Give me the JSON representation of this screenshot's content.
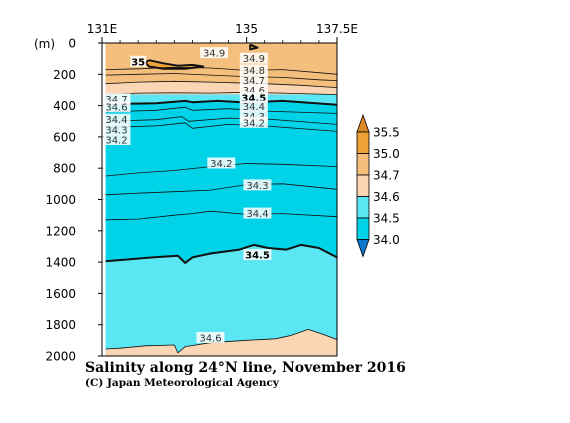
{
  "chart_data": {
    "type": "contour",
    "title": "Salinity along 24°N line, November 2016",
    "credit": "(C) Japan Meteorological Agency",
    "xlabel": "",
    "ylabel": "(m)",
    "xlim": [
      131,
      137.5
    ],
    "ylim": [
      2000,
      0
    ],
    "x_ticks": [
      {
        "value": 131,
        "label": "131E"
      },
      {
        "value": 135,
        "label": "135"
      },
      {
        "value": 137.5,
        "label": "137.5E"
      }
    ],
    "y_ticks": [
      {
        "value": 0,
        "label": "0"
      },
      {
        "value": 200,
        "label": "200"
      },
      {
        "value": 400,
        "label": "400"
      },
      {
        "value": 600,
        "label": "600"
      },
      {
        "value": 800,
        "label": "800"
      },
      {
        "value": 1000,
        "label": "1000"
      },
      {
        "value": 1200,
        "label": "1200"
      },
      {
        "value": 1400,
        "label": "1400"
      },
      {
        "value": 1600,
        "label": "1600"
      },
      {
        "value": 1800,
        "label": "1800"
      },
      {
        "value": 2000,
        "label": "2000"
      }
    ],
    "data_xrange": [
      131.1,
      137.5
    ],
    "colorbar": {
      "levels": [
        "35.5",
        "35.0",
        "34.7",
        "34.6",
        "34.5",
        "34.0"
      ],
      "bands": [
        {
          "range": "> 35.5",
          "color": "#dd8822"
        },
        {
          "range": "35.0 - 35.5",
          "color": "#eea33a"
        },
        {
          "range": "34.7 - 35.0",
          "color": "#f4bf7c"
        },
        {
          "range": "34.6 - 34.7",
          "color": "#fad6b5"
        },
        {
          "range": "34.5 - 34.6",
          "color": "#5ae6f2"
        },
        {
          "range": "34.0 - 34.5",
          "color": "#00d2e8"
        },
        {
          "range": "< 34.0",
          "color": "#0b78d0"
        }
      ]
    },
    "fill_regions": [
      {
        "range": "34.6 - 34.7",
        "color": "#fad6b5",
        "boundary": "top",
        "depth": [
          [
            131.1,
            0
          ],
          [
            137.5,
            0
          ],
          [
            137.5,
            330
          ],
          [
            131.1,
            330
          ]
        ]
      },
      {
        "range": "34.7 - 35.0",
        "color": "#f4bf7c",
        "boundary": "top",
        "depth": [
          [
            131.1,
            0
          ],
          [
            137.5,
            0
          ],
          [
            137.5,
            285
          ],
          [
            136.5,
            270
          ],
          [
            135.5,
            260
          ],
          [
            134,
            250
          ],
          [
            133,
            245
          ],
          [
            132,
            250
          ],
          [
            131.1,
            260
          ]
        ]
      },
      {
        "range": "34.5 - 34.6",
        "color": "#5ae6f2",
        "boundary": "bottom",
        "depth": [
          [
            131.1,
            1395
          ],
          [
            131.6,
            1385
          ],
          [
            132.4,
            1370
          ],
          [
            133.1,
            1360
          ],
          [
            133.3,
            1405
          ],
          [
            133.5,
            1370
          ],
          [
            134,
            1345
          ],
          [
            134.8,
            1320
          ],
          [
            135.2,
            1290
          ],
          [
            135.6,
            1310
          ],
          [
            136.1,
            1320
          ],
          [
            136.5,
            1290
          ],
          [
            137,
            1310
          ],
          [
            137.5,
            1370
          ],
          [
            137.5,
            2000
          ],
          [
            131.1,
            2000
          ]
        ]
      },
      {
        "range": "34.6 - 34.7",
        "color": "#fad6b5",
        "boundary": "bottom",
        "depth": [
          [
            131.1,
            1955
          ],
          [
            131.5,
            1950
          ],
          [
            132.2,
            1935
          ],
          [
            133,
            1930
          ],
          [
            133.1,
            1980
          ],
          [
            133.3,
            1940
          ],
          [
            134,
            1915
          ],
          [
            135,
            1900
          ],
          [
            135.8,
            1890
          ],
          [
            136.2,
            1870
          ],
          [
            136.7,
            1830
          ],
          [
            137.1,
            1860
          ],
          [
            137.5,
            1895
          ],
          [
            137.5,
            2000
          ],
          [
            131.1,
            2000
          ]
        ]
      },
      {
        "range": "34.5 - 34.6",
        "color": "#5ae6f2",
        "boundary": "top",
        "depth": [
          [
            131.1,
            390
          ],
          [
            132.5,
            385
          ],
          [
            133.5,
            372
          ],
          [
            134,
            378
          ],
          [
            135,
            380
          ],
          [
            136,
            370
          ],
          [
            137.5,
            395
          ],
          [
            137.5,
            330
          ],
          [
            131.1,
            330
          ]
        ]
      }
    ],
    "contours": [
      {
        "level": 34.9,
        "style": "thin",
        "depth": [
          [
            131.1,
            170
          ],
          [
            132,
            165
          ],
          [
            133,
            155
          ],
          [
            134,
            160
          ],
          [
            135,
            175
          ],
          [
            136,
            170
          ],
          [
            137,
            190
          ],
          [
            137.5,
            200
          ]
        ]
      },
      {
        "level": 34.8,
        "style": "thin",
        "depth": [
          [
            131.1,
            205
          ],
          [
            132,
            200
          ],
          [
            133,
            195
          ],
          [
            134,
            205
          ],
          [
            135,
            215
          ],
          [
            136,
            220
          ],
          [
            137,
            235
          ],
          [
            137.5,
            240
          ]
        ]
      },
      {
        "level": 34.7,
        "style": "thin",
        "depth": [
          [
            131.1,
            260
          ],
          [
            132,
            250
          ],
          [
            133,
            245
          ],
          [
            134,
            250
          ],
          [
            135.5,
            260
          ],
          [
            136.5,
            270
          ],
          [
            137.5,
            285
          ]
        ]
      },
      {
        "level": 34.6,
        "style": "thin",
        "depth": [
          [
            131.1,
            330
          ],
          [
            132,
            320
          ],
          [
            133,
            318
          ],
          [
            134,
            320
          ],
          [
            135,
            315
          ],
          [
            136,
            320
          ],
          [
            137.5,
            330
          ]
        ]
      },
      {
        "level": 34.5,
        "style": "thick",
        "depth": [
          [
            131.1,
            390
          ],
          [
            132.5,
            385
          ],
          [
            133.3,
            370
          ],
          [
            133.5,
            378
          ],
          [
            134.2,
            370
          ],
          [
            135,
            380
          ],
          [
            136,
            370
          ],
          [
            137.5,
            395
          ]
        ]
      },
      {
        "level": 34.4,
        "style": "thin",
        "depth": [
          [
            131.1,
            440
          ],
          [
            132.5,
            430
          ],
          [
            133.3,
            410
          ],
          [
            133.5,
            430
          ],
          [
            134.5,
            420
          ],
          [
            135.5,
            435
          ],
          [
            137.5,
            450
          ]
        ]
      },
      {
        "level": 34.3,
        "style": "thin",
        "depth": [
          [
            131.1,
            500
          ],
          [
            132.5,
            490
          ],
          [
            133.2,
            470
          ],
          [
            133.4,
            500
          ],
          [
            134.5,
            480
          ],
          [
            135.5,
            485
          ],
          [
            137.5,
            520
          ]
        ]
      },
      {
        "level": 34.2,
        "style": "thin",
        "depth": [
          [
            131.1,
            540
          ],
          [
            132.5,
            530
          ],
          [
            133.3,
            510
          ],
          [
            133.5,
            545
          ],
          [
            134.5,
            520
          ],
          [
            135.5,
            530
          ],
          [
            137.5,
            565
          ]
        ]
      },
      {
        "level": 34.2,
        "style": "thin",
        "depth": [
          [
            131.1,
            850
          ],
          [
            132,
            830
          ],
          [
            133,
            815
          ],
          [
            134,
            790
          ],
          [
            135,
            770
          ],
          [
            136,
            775
          ],
          [
            137.5,
            790
          ]
        ]
      },
      {
        "level": 34.3,
        "style": "thin",
        "depth": [
          [
            131.1,
            970
          ],
          [
            132,
            960
          ],
          [
            133,
            950
          ],
          [
            134,
            940
          ],
          [
            135,
            905
          ],
          [
            136,
            900
          ],
          [
            137.5,
            935
          ]
        ]
      },
      {
        "level": 34.4,
        "style": "thin",
        "depth": [
          [
            131.1,
            1130
          ],
          [
            132,
            1125
          ],
          [
            133,
            1100
          ],
          [
            133.5,
            1090
          ],
          [
            134,
            1075
          ],
          [
            135,
            1095
          ],
          [
            136,
            1090
          ],
          [
            137.5,
            1110
          ]
        ]
      },
      {
        "level": 34.5,
        "style": "thick",
        "depth": [
          [
            131.1,
            1395
          ],
          [
            131.6,
            1385
          ],
          [
            132.4,
            1370
          ],
          [
            133.1,
            1360
          ],
          [
            133.3,
            1405
          ],
          [
            133.5,
            1370
          ],
          [
            134,
            1345
          ],
          [
            134.8,
            1320
          ],
          [
            135.2,
            1290
          ],
          [
            135.6,
            1310
          ],
          [
            136.1,
            1320
          ],
          [
            136.5,
            1290
          ],
          [
            137,
            1310
          ],
          [
            137.5,
            1370
          ]
        ]
      },
      {
        "level": 34.6,
        "style": "thin",
        "depth": [
          [
            131.1,
            1955
          ],
          [
            131.5,
            1950
          ],
          [
            132.2,
            1935
          ],
          [
            133,
            1930
          ],
          [
            133.1,
            1980
          ],
          [
            133.3,
            1940
          ],
          [
            134,
            1915
          ],
          [
            135,
            1900
          ],
          [
            135.8,
            1890
          ],
          [
            136.2,
            1870
          ],
          [
            136.7,
            1830
          ],
          [
            137.1,
            1860
          ],
          [
            137.5,
            1895
          ]
        ]
      },
      {
        "level": 35.0,
        "style": "thick",
        "depth": [
          [
            132.3,
            110
          ],
          [
            132.7,
            130
          ],
          [
            133.1,
            145
          ],
          [
            133.5,
            140
          ],
          [
            133.8,
            150
          ],
          [
            133.3,
            165
          ],
          [
            132.7,
            165
          ],
          [
            132.3,
            150
          ],
          [
            132.2,
            125
          ],
          [
            132.3,
            110
          ]
        ]
      },
      {
        "level": 35.0,
        "style": "thick",
        "depth": [
          [
            135.1,
            10
          ],
          [
            135.3,
            30
          ],
          [
            135.1,
            40
          ],
          [
            135.1,
            10
          ]
        ]
      }
    ],
    "contour_labels": [
      {
        "text": "35",
        "x": 132.0,
        "y": 120,
        "bold": true
      },
      {
        "text": "34.9",
        "x": 134.1,
        "y": 65,
        "bold": false
      },
      {
        "text": "34.9",
        "x": 135.2,
        "y": 100,
        "bold": false
      },
      {
        "text": "34.8",
        "x": 135.2,
        "y": 175,
        "bold": false
      },
      {
        "text": "34.7",
        "x": 135.2,
        "y": 240,
        "bold": false
      },
      {
        "text": "34.6",
        "x": 135.2,
        "y": 305,
        "bold": false
      },
      {
        "text": "34.5",
        "x": 135.2,
        "y": 350,
        "bold": true
      },
      {
        "text": "34.4",
        "x": 135.2,
        "y": 405,
        "bold": false
      },
      {
        "text": "34.3",
        "x": 135.2,
        "y": 470,
        "bold": false
      },
      {
        "text": "34.2",
        "x": 135.2,
        "y": 510,
        "bold": false
      },
      {
        "text": "34.7",
        "x": 131.4,
        "y": 360,
        "bold": false
      },
      {
        "text": "34.6",
        "x": 131.4,
        "y": 410,
        "bold": false
      },
      {
        "text": "34.4",
        "x": 131.4,
        "y": 490,
        "bold": false
      },
      {
        "text": "34.3",
        "x": 131.4,
        "y": 555,
        "bold": false
      },
      {
        "text": "34.2",
        "x": 131.4,
        "y": 620,
        "bold": false
      },
      {
        "text": "34.2",
        "x": 134.3,
        "y": 770,
        "bold": false
      },
      {
        "text": "34.3",
        "x": 135.3,
        "y": 910,
        "bold": false
      },
      {
        "text": "34.4",
        "x": 135.3,
        "y": 1090,
        "bold": false
      },
      {
        "text": "34.5",
        "x": 135.3,
        "y": 1355,
        "bold": true
      },
      {
        "text": "34.6",
        "x": 134.0,
        "y": 1885,
        "bold": false
      }
    ]
  }
}
